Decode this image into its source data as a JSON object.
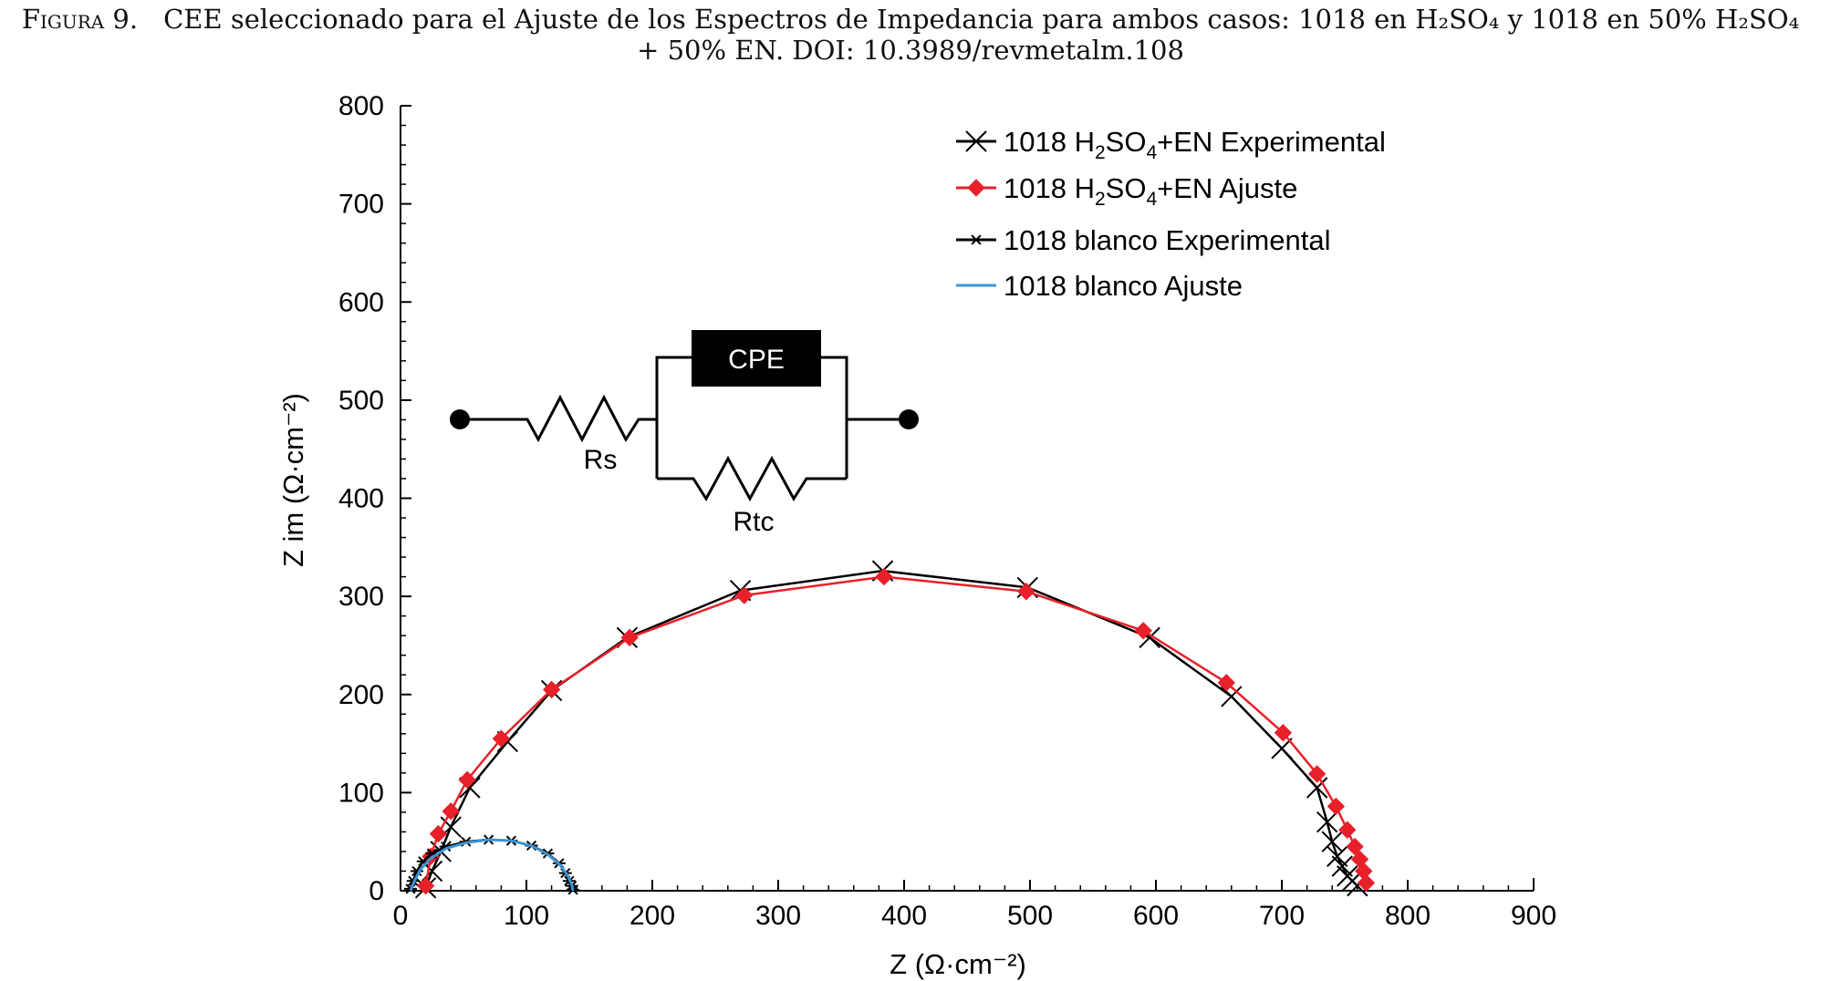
{
  "caption": {
    "label": "Figura 9.",
    "line1": "CEE seleccionado para el Ajuste de los Espectros de Impedancia para ambos casos: 1018 en H₂SO₄ y 1018 en 50% H₂SO₄",
    "line2": "+ 50% EN. DOI: 10.3989/revmetalm.108"
  },
  "chart_data": {
    "type": "scatter",
    "title": "",
    "xlabel": "Z (Ω·cm⁻²)",
    "ylabel": "Z im (Ω·cm⁻²)",
    "xlim": [
      0,
      900
    ],
    "ylim": [
      0,
      800
    ],
    "xticks": [
      "0",
      "100",
      "200",
      "300",
      "400",
      "500",
      "600",
      "700",
      "800",
      "900"
    ],
    "yticks": [
      "0",
      "100",
      "200",
      "300",
      "400",
      "500",
      "600",
      "700",
      "800"
    ],
    "grid": false,
    "legend_position": "top-right",
    "series": [
      {
        "name": "1018 H2SO4+EN Experimental",
        "legend_prefix": "1018 H",
        "legend_sub1": "2",
        "legend_mid": "SO",
        "legend_sub2": "4",
        "legend_suffix": "+EN Experimental",
        "color": "#000000",
        "marker": "x",
        "x": [
          20,
          25,
          32,
          40,
          55,
          85,
          120,
          180,
          270,
          383,
          498,
          595,
          660,
          700,
          728,
          736,
          740,
          744,
          748,
          752,
          756,
          760
        ],
        "y": [
          3,
          20,
          40,
          65,
          105,
          152,
          204,
          258,
          306,
          326,
          309,
          258,
          198,
          145,
          105,
          70,
          50,
          35,
          25,
          15,
          10,
          5
        ]
      },
      {
        "name": "1018 H2SO4+EN Ajuste",
        "legend_prefix": "1018 H",
        "legend_sub1": "2",
        "legend_mid": "SO",
        "legend_sub2": "4",
        "legend_suffix": "+EN Ajuste",
        "color": "#e8202a",
        "marker": "diamond",
        "x": [
          20,
          24,
          30,
          40,
          53,
          80,
          120,
          182,
          273,
          384,
          497,
          590,
          656,
          701,
          728,
          743,
          752,
          758,
          762,
          765,
          767
        ],
        "y": [
          5,
          35,
          58,
          81,
          113,
          155,
          205,
          258,
          301,
          320,
          305,
          265,
          212,
          161,
          119,
          86,
          62,
          45,
          32,
          20,
          8
        ]
      },
      {
        "name": "1018 blanco Experimental",
        "legend_suffix": "1018 blanco Experimental",
        "color": "#000000",
        "marker": "asterisk",
        "x": [
          8,
          10,
          13,
          18,
          25,
          36,
          52,
          70,
          88,
          104,
          117,
          126,
          131,
          134,
          136,
          137
        ],
        "y": [
          2,
          10,
          20,
          30,
          38,
          45,
          50,
          52,
          51,
          46,
          38,
          28,
          18,
          10,
          5,
          1
        ]
      },
      {
        "name": "1018 blanco Ajuste",
        "legend_suffix": "1018 blanco Ajuste",
        "color": "#3d94d4",
        "marker": "none",
        "x": [
          8,
          11,
          16,
          24,
          36,
          52,
          70,
          88,
          104,
          117,
          127,
          133,
          136,
          137
        ],
        "y": [
          0,
          10,
          22,
          33,
          43,
          49,
          52,
          51,
          46,
          37,
          26,
          15,
          6,
          0
        ]
      }
    ],
    "annotations": {
      "circuit": {
        "element_label": "CPE",
        "rs_label": "Rs",
        "rtc_label": "Rtc"
      }
    }
  }
}
